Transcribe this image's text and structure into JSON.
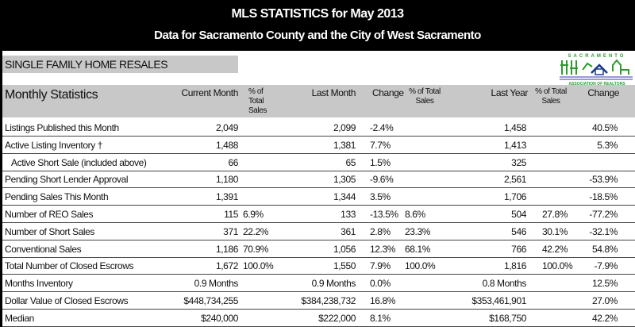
{
  "title": "MLS STATISTICS for May 2013",
  "subtitle": "Data for Sacramento County and the City of West Sacramento",
  "section": "SINGLE FAMILY HOME RESALES",
  "logo": {
    "top": "SACRAMENTO",
    "bottom": "ASSOCIATION OF REALTORS",
    "color": "#2e9a2e"
  },
  "headers": {
    "label": "Monthly Statistics",
    "current": "Current Month",
    "pct1": "% of Total Sales",
    "last": "Last Month",
    "change1": "Change",
    "pct2": "% of Total Sales",
    "lastyear": "Last Year",
    "pct3": "% of Total Sales",
    "change2": "Change"
  },
  "rows": [
    {
      "label": "Listings Published this Month",
      "cur": "2,049",
      "p1": "",
      "last": "2,099",
      "ch": "-2.4%",
      "p2": "",
      "ly": "1,458",
      "p3": "",
      "ch2": "40.5%"
    },
    {
      "label": "Active Listing Inventory †",
      "cur": "1,488",
      "p1": "",
      "last": "1,381",
      "ch": "7.7%",
      "p2": "",
      "ly": "1,413",
      "p3": "",
      "ch2": "5.3%"
    },
    {
      "label": "Active Short Sale (included above)",
      "cur": "66",
      "p1": "",
      "last": "65",
      "ch": "1.5%",
      "p2": "",
      "ly": "325",
      "p3": "",
      "ch2": ""
    },
    {
      "label": "Pending Short Lender Approval",
      "cur": "1,180",
      "p1": "",
      "last": "1,305",
      "ch": "-9.6%",
      "p2": "",
      "ly": "2,561",
      "p3": "",
      "ch2": "-53.9%"
    },
    {
      "label": "Pending Sales This Month",
      "cur": "1,391",
      "p1": "",
      "last": "1,344",
      "ch": "3.5%",
      "p2": "",
      "ly": "1,706",
      "p3": "",
      "ch2": "-18.5%"
    },
    {
      "label": "Number of REO Sales",
      "cur": "115",
      "p1": "6.9%",
      "last": "133",
      "ch": "-13.5%",
      "p2": "8.6%",
      "ly": "504",
      "p3": "27.8%",
      "ch2": "-77.2%"
    },
    {
      "label": "Number of Short Sales",
      "cur": "371",
      "p1": "22.2%",
      "last": "361",
      "ch": "2.8%",
      "p2": "23.3%",
      "ly": "546",
      "p3": "30.1%",
      "ch2": "-32.1%"
    },
    {
      "label": "Conventional Sales",
      "cur": "1,186",
      "p1": "70.9%",
      "last": "1,056",
      "ch": "12.3%",
      "p2": "68.1%",
      "ly": "766",
      "p3": "42.2%",
      "ch2": "54.8%"
    },
    {
      "label": "Total Number of Closed Escrows",
      "cur": "1,672",
      "p1": "100.0%",
      "last": "1,550",
      "ch": "7.9%",
      "p2": "100.0%",
      "ly": "1,816",
      "p3": "100.0%",
      "ch2": "-7.9%"
    },
    {
      "label": "Months Inventory",
      "cur": "0.9 Months",
      "p1": "",
      "last": "0.9 Months",
      "ch": "0.0%",
      "p2": "",
      "ly": "0.8 Months",
      "p3": "",
      "ch2": "12.5%"
    },
    {
      "label": "Dollar Value of Closed Escrows",
      "cur": "$448,734,255",
      "p1": "",
      "last": "$384,238,732",
      "ch": "16.8%",
      "p2": "",
      "ly": "$353,461,901",
      "p3": "",
      "ch2": "27.0%"
    },
    {
      "label": "Median",
      "cur": "$240,000",
      "p1": "",
      "last": "$222,000",
      "ch": "8.1%",
      "p2": "",
      "ly": "$168,750",
      "p3": "",
      "ch2": "42.2%"
    }
  ]
}
